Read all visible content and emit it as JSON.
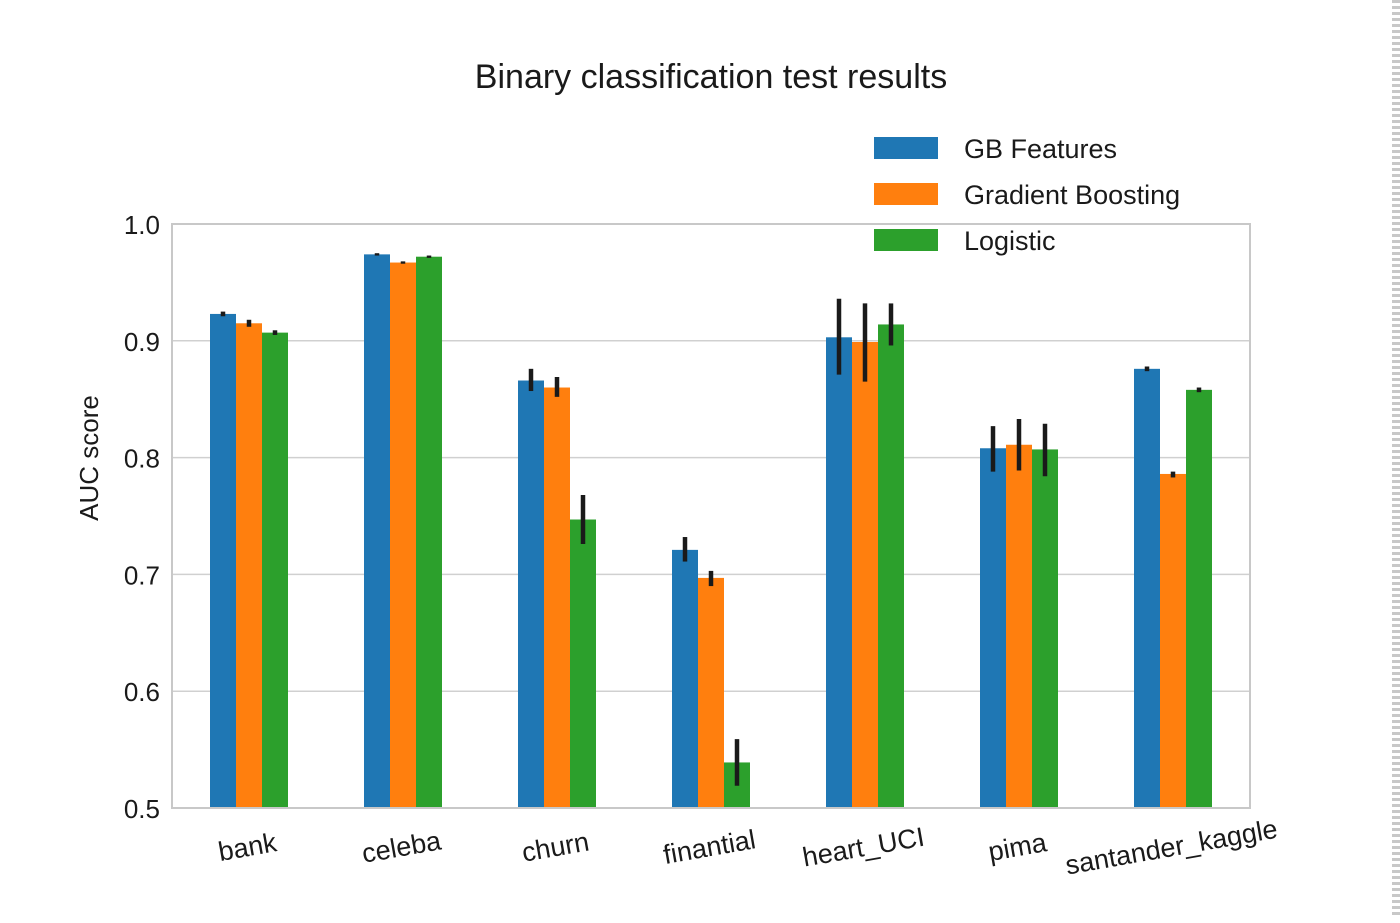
{
  "chart_data": {
    "type": "bar",
    "title": "Binary classification test results",
    "ylabel": "AUC score",
    "xlabel": "",
    "ylim": [
      0.5,
      1.0
    ],
    "yticks": [
      0.5,
      0.6,
      0.7,
      0.8,
      0.9,
      1.0
    ],
    "ytick_labels": [
      "0.5",
      "0.6",
      "0.7",
      "0.8",
      "0.9",
      "1.0"
    ],
    "grid": true,
    "legend_position": "top-right",
    "categories": [
      "bank",
      "celeba",
      "churn",
      "finantial",
      "heart_UCI",
      "pima",
      "santander_kaggle"
    ],
    "series": [
      {
        "name": "GB Features",
        "color": "#1f77b4",
        "values": [
          0.923,
          0.974,
          0.866,
          0.721,
          0.903,
          0.808,
          0.876
        ],
        "err_low": [
          0.921,
          0.973,
          0.857,
          0.711,
          0.871,
          0.788,
          0.874
        ],
        "err_high": [
          0.925,
          0.975,
          0.876,
          0.732,
          0.936,
          0.827,
          0.878
        ]
      },
      {
        "name": "Gradient Boosting",
        "color": "#ff7f0e",
        "values": [
          0.915,
          0.967,
          0.86,
          0.697,
          0.899,
          0.811,
          0.786
        ],
        "err_low": [
          0.912,
          0.966,
          0.852,
          0.69,
          0.865,
          0.789,
          0.783
        ],
        "err_high": [
          0.918,
          0.968,
          0.869,
          0.703,
          0.932,
          0.833,
          0.788
        ]
      },
      {
        "name": "Logistic",
        "color": "#2ca02c",
        "values": [
          0.907,
          0.972,
          0.747,
          0.539,
          0.914,
          0.807,
          0.858
        ],
        "err_low": [
          0.905,
          0.971,
          0.726,
          0.519,
          0.896,
          0.784,
          0.856
        ],
        "err_high": [
          0.909,
          0.973,
          0.768,
          0.559,
          0.932,
          0.829,
          0.86
        ]
      }
    ]
  }
}
